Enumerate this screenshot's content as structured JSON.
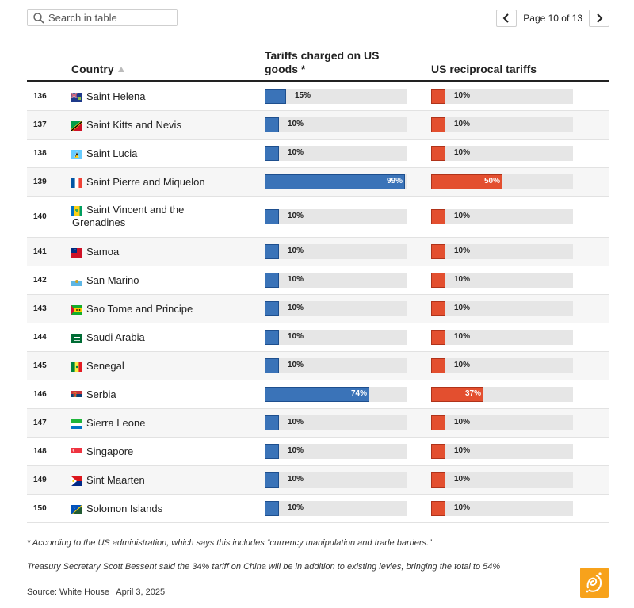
{
  "search": {
    "placeholder": "Search in table"
  },
  "pagination": {
    "text": "Page 10 of 13"
  },
  "columns": {
    "country": "Country",
    "tariffs_charged": "Tariffs charged on US goods *",
    "reciprocal": "US reciprocal tariffs"
  },
  "colors": {
    "us_bar": "#3a73b8",
    "reciprocal_bar": "#e34f2f",
    "track": "#e6e6e6"
  },
  "chart_data": {
    "type": "table",
    "series": [
      {
        "name": "Tariffs charged on US goods *",
        "key": "charged"
      },
      {
        "name": "US reciprocal tariffs",
        "key": "reciprocal"
      }
    ],
    "xlim": [
      0,
      100
    ],
    "rows": [
      {
        "rank": "136",
        "country": "Saint Helena",
        "flag": "saint-helena-flag",
        "charged": 15,
        "reciprocal": 10,
        "charged_label": "15%",
        "reciprocal_label": "10%"
      },
      {
        "rank": "137",
        "country": "Saint Kitts and Nevis",
        "flag": "saint-kitts-flag",
        "charged": 10,
        "reciprocal": 10,
        "charged_label": "10%",
        "reciprocal_label": "10%"
      },
      {
        "rank": "138",
        "country": "Saint Lucia",
        "flag": "saint-lucia-flag",
        "charged": 10,
        "reciprocal": 10,
        "charged_label": "10%",
        "reciprocal_label": "10%"
      },
      {
        "rank": "139",
        "country": "Saint Pierre and Miquelon",
        "flag": "saint-pierre-flag",
        "charged": 99,
        "reciprocal": 50,
        "charged_label": "99%",
        "reciprocal_label": "50%"
      },
      {
        "rank": "140",
        "country": "Saint Vincent and the Grenadines",
        "flag": "saint-vincent-flag",
        "charged": 10,
        "reciprocal": 10,
        "charged_label": "10%",
        "reciprocal_label": "10%"
      },
      {
        "rank": "141",
        "country": "Samoa",
        "flag": "samoa-flag",
        "charged": 10,
        "reciprocal": 10,
        "charged_label": "10%",
        "reciprocal_label": "10%"
      },
      {
        "rank": "142",
        "country": "San Marino",
        "flag": "san-marino-flag",
        "charged": 10,
        "reciprocal": 10,
        "charged_label": "10%",
        "reciprocal_label": "10%"
      },
      {
        "rank": "143",
        "country": "Sao Tome and Principe",
        "flag": "sao-tome-flag",
        "charged": 10,
        "reciprocal": 10,
        "charged_label": "10%",
        "reciprocal_label": "10%"
      },
      {
        "rank": "144",
        "country": "Saudi Arabia",
        "flag": "saudi-arabia-flag",
        "charged": 10,
        "reciprocal": 10,
        "charged_label": "10%",
        "reciprocal_label": "10%"
      },
      {
        "rank": "145",
        "country": "Senegal",
        "flag": "senegal-flag",
        "charged": 10,
        "reciprocal": 10,
        "charged_label": "10%",
        "reciprocal_label": "10%"
      },
      {
        "rank": "146",
        "country": "Serbia",
        "flag": "serbia-flag",
        "charged": 74,
        "reciprocal": 37,
        "charged_label": "74%",
        "reciprocal_label": "37%"
      },
      {
        "rank": "147",
        "country": "Sierra Leone",
        "flag": "sierra-leone-flag",
        "charged": 10,
        "reciprocal": 10,
        "charged_label": "10%",
        "reciprocal_label": "10%"
      },
      {
        "rank": "148",
        "country": "Singapore",
        "flag": "singapore-flag",
        "charged": 10,
        "reciprocal": 10,
        "charged_label": "10%",
        "reciprocal_label": "10%"
      },
      {
        "rank": "149",
        "country": "Sint Maarten",
        "flag": "sint-maarten-flag",
        "charged": 10,
        "reciprocal": 10,
        "charged_label": "10%",
        "reciprocal_label": "10%"
      },
      {
        "rank": "150",
        "country": "Solomon Islands",
        "flag": "solomon-islands-flag",
        "charged": 10,
        "reciprocal": 10,
        "charged_label": "10%",
        "reciprocal_label": "10%"
      }
    ]
  },
  "footnote": "* According to the US administration, which says this includes “currency manipulation and trade barriers.”",
  "note": "Treasury Secretary Scott Bessent said the 34% tariff on China will be in addition to existing levies, bringing the total to 54%",
  "source": "Source: White House | April 3, 2025"
}
